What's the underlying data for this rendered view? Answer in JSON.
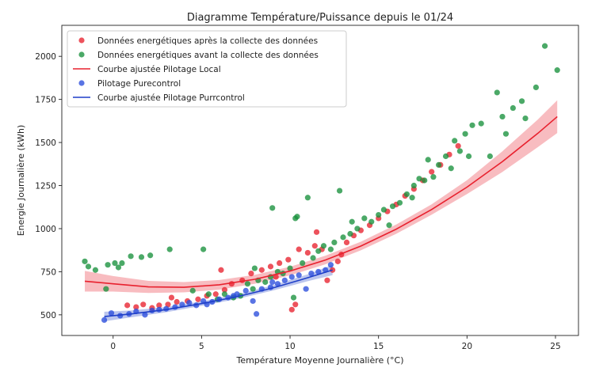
{
  "chart_data": {
    "type": "scatter",
    "title": "Diagramme Température/Puissance depuis le 01/24",
    "xlabel": "Température Moyenne Journalière (°C)",
    "ylabel": "Energie Journalière (kWh)",
    "xlim": [
      -2.9,
      26.3
    ],
    "ylim": [
      380,
      2180
    ],
    "xticks": [
      0,
      5,
      10,
      15,
      20,
      25
    ],
    "yticks": [
      500,
      750,
      1000,
      1250,
      1500,
      1750,
      2000
    ],
    "legend_position": "top-left",
    "grid": false,
    "series": [
      {
        "name": "Données energétiques après la collecte des données",
        "kind": "scatter",
        "color": "#e8212e",
        "points": [
          [
            0.8,
            555
          ],
          [
            1.3,
            545
          ],
          [
            1.7,
            560
          ],
          [
            2.2,
            540
          ],
          [
            2.6,
            555
          ],
          [
            3.1,
            560
          ],
          [
            3.3,
            600
          ],
          [
            3.6,
            575
          ],
          [
            4.2,
            580
          ],
          [
            4.8,
            590
          ],
          [
            5.3,
            610
          ],
          [
            5.8,
            620
          ],
          [
            6.3,
            645
          ],
          [
            6.7,
            680
          ],
          [
            7.3,
            700
          ],
          [
            7.8,
            740
          ],
          [
            8.4,
            760
          ],
          [
            8.9,
            780
          ],
          [
            9.4,
            800
          ],
          [
            9.9,
            820
          ],
          [
            10.1,
            530
          ],
          [
            10.3,
            560
          ],
          [
            10.5,
            880
          ],
          [
            11.0,
            860
          ],
          [
            11.4,
            900
          ],
          [
            11.8,
            880
          ],
          [
            12.1,
            700
          ],
          [
            12.4,
            760
          ],
          [
            12.7,
            810
          ],
          [
            12.9,
            850
          ],
          [
            13.2,
            920
          ],
          [
            13.6,
            960
          ],
          [
            14.0,
            990
          ],
          [
            14.5,
            1020
          ],
          [
            15.0,
            1060
          ],
          [
            15.5,
            1100
          ],
          [
            16.0,
            1140
          ],
          [
            16.5,
            1190
          ],
          [
            17.0,
            1230
          ],
          [
            17.5,
            1280
          ],
          [
            18.0,
            1330
          ],
          [
            18.5,
            1370
          ],
          [
            19.0,
            1430
          ],
          [
            19.5,
            1480
          ],
          [
            6.1,
            760
          ],
          [
            9.2,
            720
          ],
          [
            11.5,
            980
          ]
        ]
      },
      {
        "name": "Données energétiques avant la collecte des données",
        "kind": "scatter",
        "color": "#18913c",
        "points": [
          [
            -1.6,
            810
          ],
          [
            -1.4,
            780
          ],
          [
            -1.0,
            760
          ],
          [
            -0.4,
            650
          ],
          [
            -0.3,
            790
          ],
          [
            0.1,
            800
          ],
          [
            0.3,
            775
          ],
          [
            0.5,
            800
          ],
          [
            1.0,
            840
          ],
          [
            1.6,
            835
          ],
          [
            2.1,
            845
          ],
          [
            3.2,
            880
          ],
          [
            5.1,
            880
          ],
          [
            5.4,
            620
          ],
          [
            5.9,
            590
          ],
          [
            6.3,
            620
          ],
          [
            6.8,
            600
          ],
          [
            7.2,
            610
          ],
          [
            7.6,
            680
          ],
          [
            7.9,
            650
          ],
          [
            8.2,
            700
          ],
          [
            8.6,
            690
          ],
          [
            8.9,
            720
          ],
          [
            9.0,
            1120
          ],
          [
            9.3,
            750
          ],
          [
            9.6,
            740
          ],
          [
            10.0,
            770
          ],
          [
            10.2,
            600
          ],
          [
            10.3,
            1060
          ],
          [
            10.4,
            1070
          ],
          [
            10.7,
            800
          ],
          [
            11.0,
            1180
          ],
          [
            11.3,
            830
          ],
          [
            11.6,
            870
          ],
          [
            11.9,
            900
          ],
          [
            12.3,
            880
          ],
          [
            12.5,
            920
          ],
          [
            12.8,
            1220
          ],
          [
            13.0,
            950
          ],
          [
            13.4,
            970
          ],
          [
            13.8,
            1000
          ],
          [
            14.2,
            1060
          ],
          [
            14.6,
            1040
          ],
          [
            15.0,
            1080
          ],
          [
            15.3,
            1110
          ],
          [
            15.8,
            1130
          ],
          [
            16.2,
            1150
          ],
          [
            16.6,
            1200
          ],
          [
            17.0,
            1250
          ],
          [
            17.3,
            1290
          ],
          [
            17.6,
            1280
          ],
          [
            17.8,
            1400
          ],
          [
            18.1,
            1300
          ],
          [
            18.4,
            1370
          ],
          [
            18.8,
            1420
          ],
          [
            19.1,
            1350
          ],
          [
            19.3,
            1510
          ],
          [
            19.6,
            1450
          ],
          [
            19.9,
            1550
          ],
          [
            20.1,
            1420
          ],
          [
            20.3,
            1600
          ],
          [
            20.8,
            1610
          ],
          [
            21.3,
            1420
          ],
          [
            21.7,
            1790
          ],
          [
            22.0,
            1650
          ],
          [
            22.2,
            1550
          ],
          [
            22.6,
            1700
          ],
          [
            23.1,
            1740
          ],
          [
            23.3,
            1640
          ],
          [
            23.9,
            1820
          ],
          [
            24.4,
            2060
          ],
          [
            25.1,
            1920
          ],
          [
            4.5,
            640
          ],
          [
            8.0,
            770
          ],
          [
            13.5,
            1040
          ],
          [
            15.6,
            1020
          ],
          [
            16.9,
            1180
          ]
        ]
      },
      {
        "name": "Pilotage Purecontrol",
        "kind": "scatter",
        "color": "#2a4ddc",
        "points": [
          [
            -0.5,
            470
          ],
          [
            -0.1,
            510
          ],
          [
            0.4,
            495
          ],
          [
            0.9,
            505
          ],
          [
            1.3,
            520
          ],
          [
            1.8,
            500
          ],
          [
            2.2,
            525
          ],
          [
            2.6,
            530
          ],
          [
            3.0,
            535
          ],
          [
            3.5,
            545
          ],
          [
            3.9,
            560
          ],
          [
            4.3,
            570
          ],
          [
            4.7,
            555
          ],
          [
            5.1,
            580
          ],
          [
            5.6,
            575
          ],
          [
            6.0,
            590
          ],
          [
            6.5,
            600
          ],
          [
            7.0,
            620
          ],
          [
            7.5,
            640
          ],
          [
            7.9,
            580
          ],
          [
            8.1,
            505
          ],
          [
            8.4,
            650
          ],
          [
            8.9,
            660
          ],
          [
            9.3,
            680
          ],
          [
            9.7,
            700
          ],
          [
            10.1,
            720
          ],
          [
            10.5,
            730
          ],
          [
            10.9,
            650
          ],
          [
            11.2,
            740
          ],
          [
            11.6,
            750
          ],
          [
            12.0,
            760
          ],
          [
            12.3,
            790
          ],
          [
            5.3,
            560
          ],
          [
            6.8,
            610
          ],
          [
            9.0,
            690
          ]
        ]
      },
      {
        "name": "Courbe ajustée Pilotage Local",
        "kind": "fit",
        "color": "#e8212e",
        "x": [
          -1.6,
          0,
          2,
          4,
          6,
          8,
          10,
          12,
          14,
          16,
          18,
          20,
          22,
          24,
          25.1
        ],
        "y": [
          695,
          680,
          662,
          660,
          674,
          706,
          754,
          818,
          899,
          997,
          1111,
          1241,
          1389,
          1553,
          1650
        ],
        "band": [
          60,
          45,
          35,
          30,
          28,
          26,
          25,
          25,
          25,
          27,
          30,
          40,
          60,
          80,
          95
        ]
      },
      {
        "name": "Courbe ajustée Pilotage Purrcontrol",
        "kind": "fit",
        "color": "#1f3fc8",
        "x": [
          -0.5,
          1,
          3,
          5,
          7,
          9,
          11,
          12.4
        ],
        "y": [
          490,
          505,
          530,
          565,
          605,
          655,
          715,
          760
        ],
        "band": [
          28,
          20,
          15,
          13,
          13,
          15,
          20,
          30
        ]
      }
    ]
  }
}
